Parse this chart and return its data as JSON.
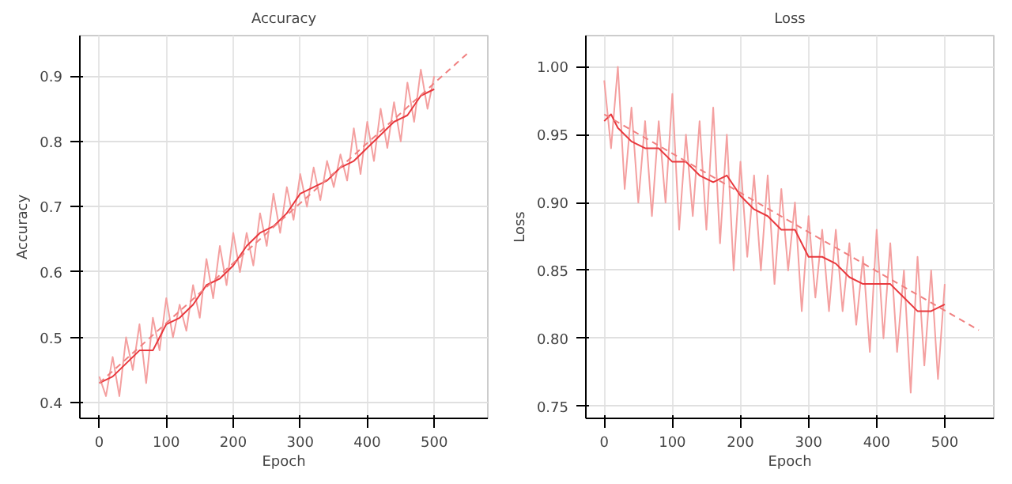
{
  "chart_data": [
    {
      "type": "line",
      "title": "Accuracy",
      "xlabel": "Epoch",
      "ylabel": "Accuracy",
      "xlim": [
        -29,
        580
      ],
      "ylim": [
        0.376,
        0.962
      ],
      "xticks": [
        0,
        100,
        200,
        300,
        400,
        500
      ],
      "yticks": [
        0.4,
        0.5,
        0.6,
        0.7,
        0.8,
        0.9
      ],
      "grid": true,
      "marker": "none",
      "line_style": "solid",
      "series": [
        {
          "color": "#f4a0a0",
          "x": [
            0,
            10,
            20,
            30,
            40,
            50,
            60,
            70,
            80,
            90,
            100,
            110,
            120,
            130,
            140,
            150,
            160,
            170,
            180,
            190,
            200,
            210,
            220,
            230,
            240,
            250,
            260,
            270,
            280,
            290,
            300,
            310,
            320,
            330,
            340,
            350,
            360,
            370,
            380,
            390,
            400,
            410,
            420,
            430,
            440,
            450,
            460,
            470,
            480,
            490,
            500
          ],
          "values": [
            0.44,
            0.41,
            0.47,
            0.41,
            0.5,
            0.45,
            0.52,
            0.43,
            0.53,
            0.48,
            0.56,
            0.5,
            0.55,
            0.51,
            0.58,
            0.53,
            0.62,
            0.56,
            0.64,
            0.58,
            0.66,
            0.6,
            0.66,
            0.61,
            0.69,
            0.64,
            0.72,
            0.66,
            0.73,
            0.68,
            0.75,
            0.7,
            0.76,
            0.71,
            0.77,
            0.73,
            0.78,
            0.74,
            0.82,
            0.75,
            0.83,
            0.77,
            0.85,
            0.79,
            0.86,
            0.8,
            0.89,
            0.83,
            0.91,
            0.85,
            0.9
          ]
        },
        {
          "color": "#e8383d",
          "x": [
            0,
            20,
            40,
            60,
            80,
            100,
            120,
            140,
            160,
            180,
            200,
            220,
            240,
            260,
            280,
            300,
            320,
            340,
            360,
            380,
            400,
            420,
            440,
            460,
            480,
            500
          ],
          "values": [
            0.43,
            0.44,
            0.46,
            0.48,
            0.48,
            0.52,
            0.53,
            0.55,
            0.58,
            0.59,
            0.61,
            0.64,
            0.66,
            0.67,
            0.69,
            0.72,
            0.73,
            0.74,
            0.76,
            0.77,
            0.79,
            0.81,
            0.83,
            0.84,
            0.87,
            0.88
          ]
        },
        {
          "color": "#f08080",
          "line_style": "dashed",
          "x": [
            0,
            550
          ],
          "values": [
            0.43,
            0.935
          ]
        }
      ]
    },
    {
      "type": "line",
      "title": "Loss",
      "xlabel": "Epoch",
      "ylabel": "Loss",
      "xlim": [
        -27,
        572
      ],
      "ylim": [
        0.741,
        1.023
      ],
      "xticks": [
        0,
        100,
        200,
        300,
        400,
        500
      ],
      "yticks": [
        {
          "value": 0.75,
          "label": "0.75"
        },
        {
          "value": 0.8,
          "label": "0.80"
        },
        {
          "value": 0.85,
          "label": "0.85"
        },
        {
          "value": 0.9,
          "label": "0.90"
        },
        {
          "value": 0.95,
          "label": "0.95"
        },
        {
          "value": 1.0,
          "label": "1.00"
        }
      ],
      "grid": true,
      "marker": "none",
      "line_style": "solid",
      "series": [
        {
          "color": "#f4a0a0",
          "x": [
            0,
            10,
            20,
            30,
            40,
            50,
            60,
            70,
            80,
            90,
            100,
            110,
            120,
            130,
            140,
            150,
            160,
            170,
            180,
            190,
            200,
            210,
            220,
            230,
            240,
            250,
            260,
            270,
            280,
            290,
            300,
            310,
            320,
            330,
            340,
            350,
            360,
            370,
            380,
            390,
            400,
            410,
            420,
            430,
            440,
            450,
            460,
            470,
            480,
            490,
            500
          ],
          "values": [
            0.99,
            0.94,
            1.0,
            0.91,
            0.97,
            0.9,
            0.96,
            0.89,
            0.96,
            0.9,
            0.98,
            0.88,
            0.95,
            0.89,
            0.96,
            0.88,
            0.97,
            0.87,
            0.95,
            0.85,
            0.93,
            0.86,
            0.92,
            0.85,
            0.92,
            0.84,
            0.91,
            0.85,
            0.9,
            0.82,
            0.89,
            0.83,
            0.88,
            0.82,
            0.88,
            0.82,
            0.87,
            0.81,
            0.86,
            0.79,
            0.88,
            0.8,
            0.87,
            0.79,
            0.85,
            0.76,
            0.86,
            0.78,
            0.85,
            0.77,
            0.84
          ]
        },
        {
          "color": "#e8383d",
          "x": [
            0,
            10,
            20,
            40,
            60,
            80,
            100,
            120,
            140,
            160,
            180,
            200,
            220,
            240,
            260,
            280,
            300,
            320,
            340,
            360,
            380,
            400,
            420,
            440,
            460,
            480,
            500
          ],
          "values": [
            0.96,
            0.965,
            0.955,
            0.945,
            0.94,
            0.94,
            0.93,
            0.93,
            0.92,
            0.915,
            0.92,
            0.905,
            0.895,
            0.89,
            0.88,
            0.88,
            0.86,
            0.86,
            0.855,
            0.845,
            0.84,
            0.84,
            0.84,
            0.83,
            0.82,
            0.82,
            0.825
          ]
        },
        {
          "color": "#f08080",
          "line_style": "dashed",
          "x": [
            0,
            550
          ],
          "values": [
            0.965,
            0.806
          ]
        }
      ]
    }
  ]
}
